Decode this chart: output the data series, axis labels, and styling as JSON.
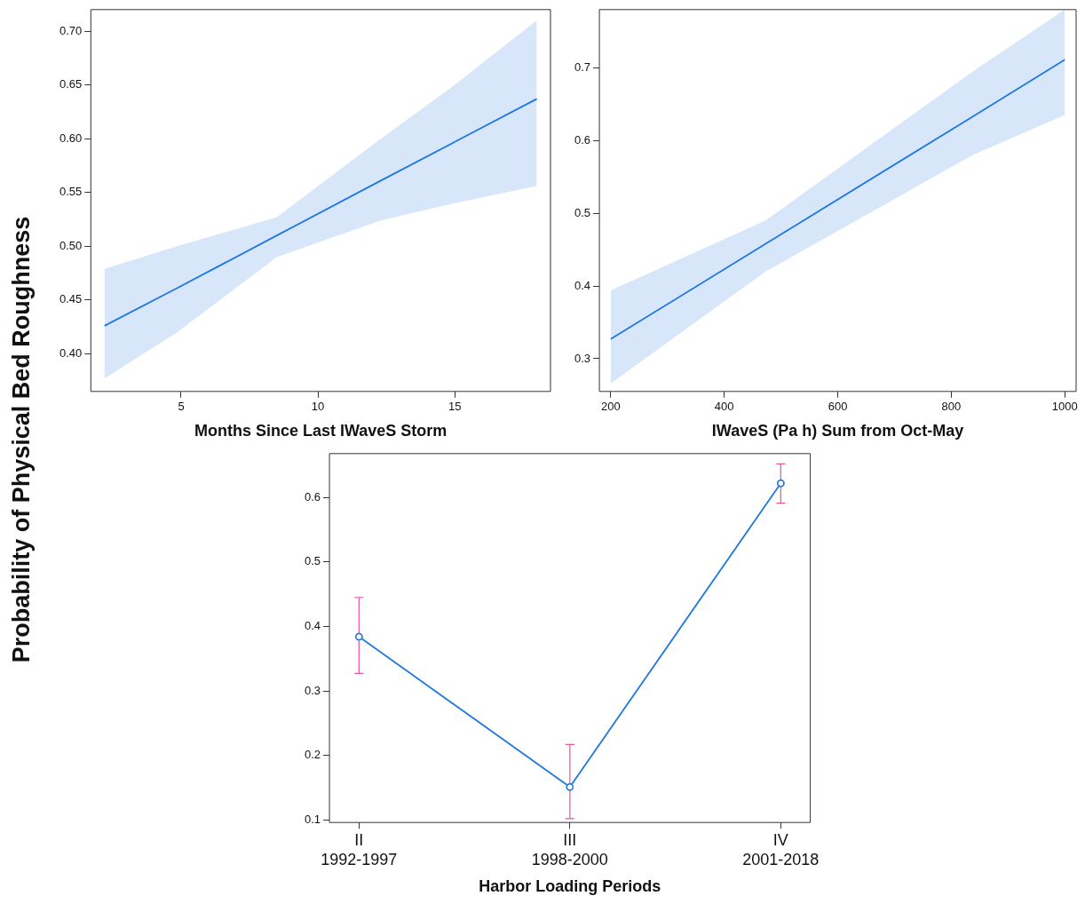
{
  "chart_data": [
    {
      "type": "line",
      "ylabel": "Probability of Physical Bed Roughness",
      "xlabel": "Months Since Last IWaveS Storm",
      "xlim": [
        1.7,
        18.5
      ],
      "xticks": [
        5,
        10,
        15
      ],
      "ylim": [
        0.365,
        0.72
      ],
      "yticks": [
        {
          "value": 0.4,
          "label": "0.40"
        },
        {
          "value": 0.45,
          "label": "0.45"
        },
        {
          "value": 0.5,
          "label": "0.50"
        },
        {
          "value": 0.55,
          "label": "0.55"
        },
        {
          "value": 0.6,
          "label": "0.60"
        },
        {
          "value": 0.65,
          "label": "0.65"
        },
        {
          "value": 0.7,
          "label": "0.70"
        }
      ],
      "grid": false,
      "legend": false,
      "marker": "none",
      "series": [
        {
          "color": "#1f77e0",
          "x": [
            2.2,
            4.85,
            8.5,
            12.3,
            15,
            18
          ],
          "values": [
            0.426,
            0.461,
            0.51,
            0.561,
            0.597,
            0.637
          ],
          "lower": [
            0.377,
            0.42,
            0.49,
            0.524,
            0.54,
            0.556
          ],
          "upper": [
            0.479,
            0.5,
            0.527,
            0.6,
            0.65,
            0.71
          ]
        }
      ]
    },
    {
      "type": "line",
      "xlabel": "IWaveS (Pa h) Sum from Oct-May",
      "xlim": [
        180,
        1020
      ],
      "xticks": [
        200,
        400,
        600,
        800,
        1000
      ],
      "ylim": [
        0.255,
        0.78
      ],
      "yticks": [
        0.3,
        0.4,
        0.5,
        0.6,
        0.7
      ],
      "grid": false,
      "legend": false,
      "marker": "none",
      "series": [
        {
          "color": "#1f77e0",
          "x": [
            200,
            473,
            838,
            1000
          ],
          "values": [
            0.327,
            0.458,
            0.633,
            0.711
          ],
          "lower": [
            0.266,
            0.42,
            0.58,
            0.635
          ],
          "upper": [
            0.394,
            0.49,
            0.695,
            0.78
          ]
        }
      ]
    },
    {
      "type": "line",
      "xlabel": "Harbor Loading Periods",
      "categories": [
        "II\n1992-1997",
        "III\n1998-2000",
        "IV\n2001-2018"
      ],
      "ylim": [
        0.096,
        0.668
      ],
      "yticks": [
        0.1,
        0.2,
        0.3,
        0.4,
        0.5,
        0.6
      ],
      "grid": false,
      "legend": false,
      "marker": "circle",
      "series": [
        {
          "color": "#1f77e0",
          "values": [
            0.384,
            0.151,
            0.622
          ],
          "errors": [
            [
              0.327,
              0.445
            ],
            [
              0.102,
              0.217
            ],
            [
              0.591,
              0.652
            ]
          ]
        }
      ]
    }
  ]
}
